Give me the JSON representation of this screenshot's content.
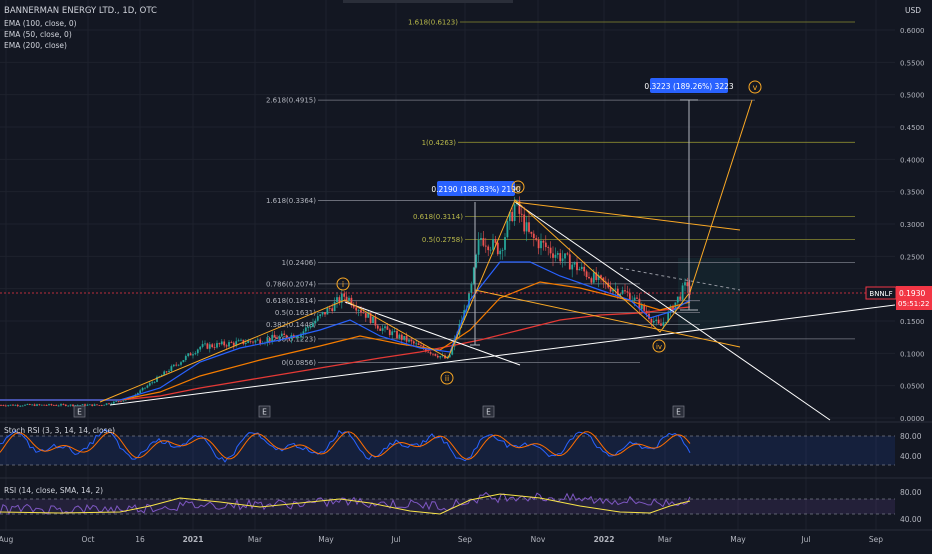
{
  "header": {
    "symbol_line": "BANNERMAN ENERGY LTD., 1D, OTC",
    "indicators": [
      "EMA (100, close, 0)",
      "EMA (50, close, 0)",
      "EMA (200, close)"
    ],
    "currency": "USD"
  },
  "price_tag": {
    "symbol": "BNNLF",
    "price": "0.1930",
    "countdown": "05:51:22"
  },
  "measure_labels": [
    {
      "text": "0.3223 (189.26%) 3223"
    },
    {
      "text": "0.2190 (188.83%) 2190"
    }
  ],
  "fib_upper": [
    {
      "label": "1.618(0.6123)",
      "value": 0.6123
    },
    {
      "label": "2.618(0.4915)",
      "value": 0.4915
    },
    {
      "label": "1(0.4263)",
      "value": 0.4263
    },
    {
      "label": "1.618(0.3364)",
      "value": 0.3364
    },
    {
      "label": "0.618(0.3114)",
      "value": 0.3114
    },
    {
      "label": "0.5(0.2758)",
      "value": 0.2758
    },
    {
      "label": "1(0.2406)",
      "value": 0.2406
    },
    {
      "label": "0.786(0.2074)",
      "value": 0.2074
    },
    {
      "label": "0.618(0.1814)",
      "value": 0.1814
    },
    {
      "label": "0.5(0.1631)",
      "value": 0.1631
    },
    {
      "label": "0.382(0.1448)",
      "value": 0.1448
    },
    {
      "label": "0.236(0.1223)",
      "value": 0.1223
    },
    {
      "label": "0(0.0856)",
      "value": 0.0856
    }
  ],
  "wave_labels": [
    "i",
    "ii",
    "iii",
    "iv",
    "v"
  ],
  "earnings_marker": "E",
  "sub_panels": {
    "stoch": {
      "title": "Stoch RSI (3, 3, 14, 14, close)",
      "levels": [
        "80.00",
        "40.00"
      ]
    },
    "rsi": {
      "title": "RSI (14, close, SMA, 14, 2)",
      "levels": [
        "80.00",
        "40.00"
      ]
    }
  },
  "time_axis": [
    "Aug",
    "Oct",
    "16",
    "2021",
    "Mar",
    "May",
    "Jul",
    "Sep",
    "Nov",
    "2022",
    "Mar",
    "May",
    "Jul",
    "Sep"
  ],
  "chart_data": {
    "type": "candlestick",
    "title": "BANNERMAN ENERGY LTD., 1D, OTC",
    "price_axis": {
      "labels": [
        "0.6000",
        "0.5500",
        "0.5000",
        "0.4500",
        "0.4000",
        "0.3500",
        "0.3000",
        "0.2500",
        "0.2000",
        "0.1500",
        "0.1000",
        "0.0500",
        "0.0000"
      ],
      "ylim": [
        0,
        0.6
      ]
    },
    "grid": true,
    "legend": "top-left",
    "colors": {
      "up": "#26a69a",
      "down": "#ef5350",
      "ema100": "#f57c00",
      "ema50": "#2962ff",
      "ema200": "#e53935",
      "fib": "#b2b5be",
      "wave": "#f9a825",
      "trend": "#ffffff",
      "measure": "#2962ff",
      "tag": "#f23645"
    },
    "price_path": [
      {
        "x": "Aug",
        "y": 0.02
      },
      {
        "x": "Oct",
        "y": 0.02
      },
      {
        "x": "16",
        "y": 0.03
      },
      {
        "x": "2021",
        "y": 0.11
      },
      {
        "x": "Mar",
        "y": 0.12
      },
      {
        "x": "May",
        "y": 0.19
      },
      {
        "x": "Jul",
        "y": 0.1
      },
      {
        "x": "Sep",
        "y": 0.3
      },
      {
        "x": "Nov",
        "y": 0.28
      },
      {
        "x": "2022",
        "y": 0.19
      },
      {
        "x": "Mar",
        "y": 0.19
      }
    ],
    "ema_last": {
      "ema50": 0.185,
      "ema100": 0.175,
      "ema200": 0.17
    },
    "last_price": 0.193,
    "stoch_rsi": {
      "ylim": [
        0,
        100
      ],
      "levels": [
        80,
        20
      ]
    },
    "rsi": {
      "ylim": [
        0,
        100
      ],
      "levels": [
        70,
        30
      ]
    }
  }
}
